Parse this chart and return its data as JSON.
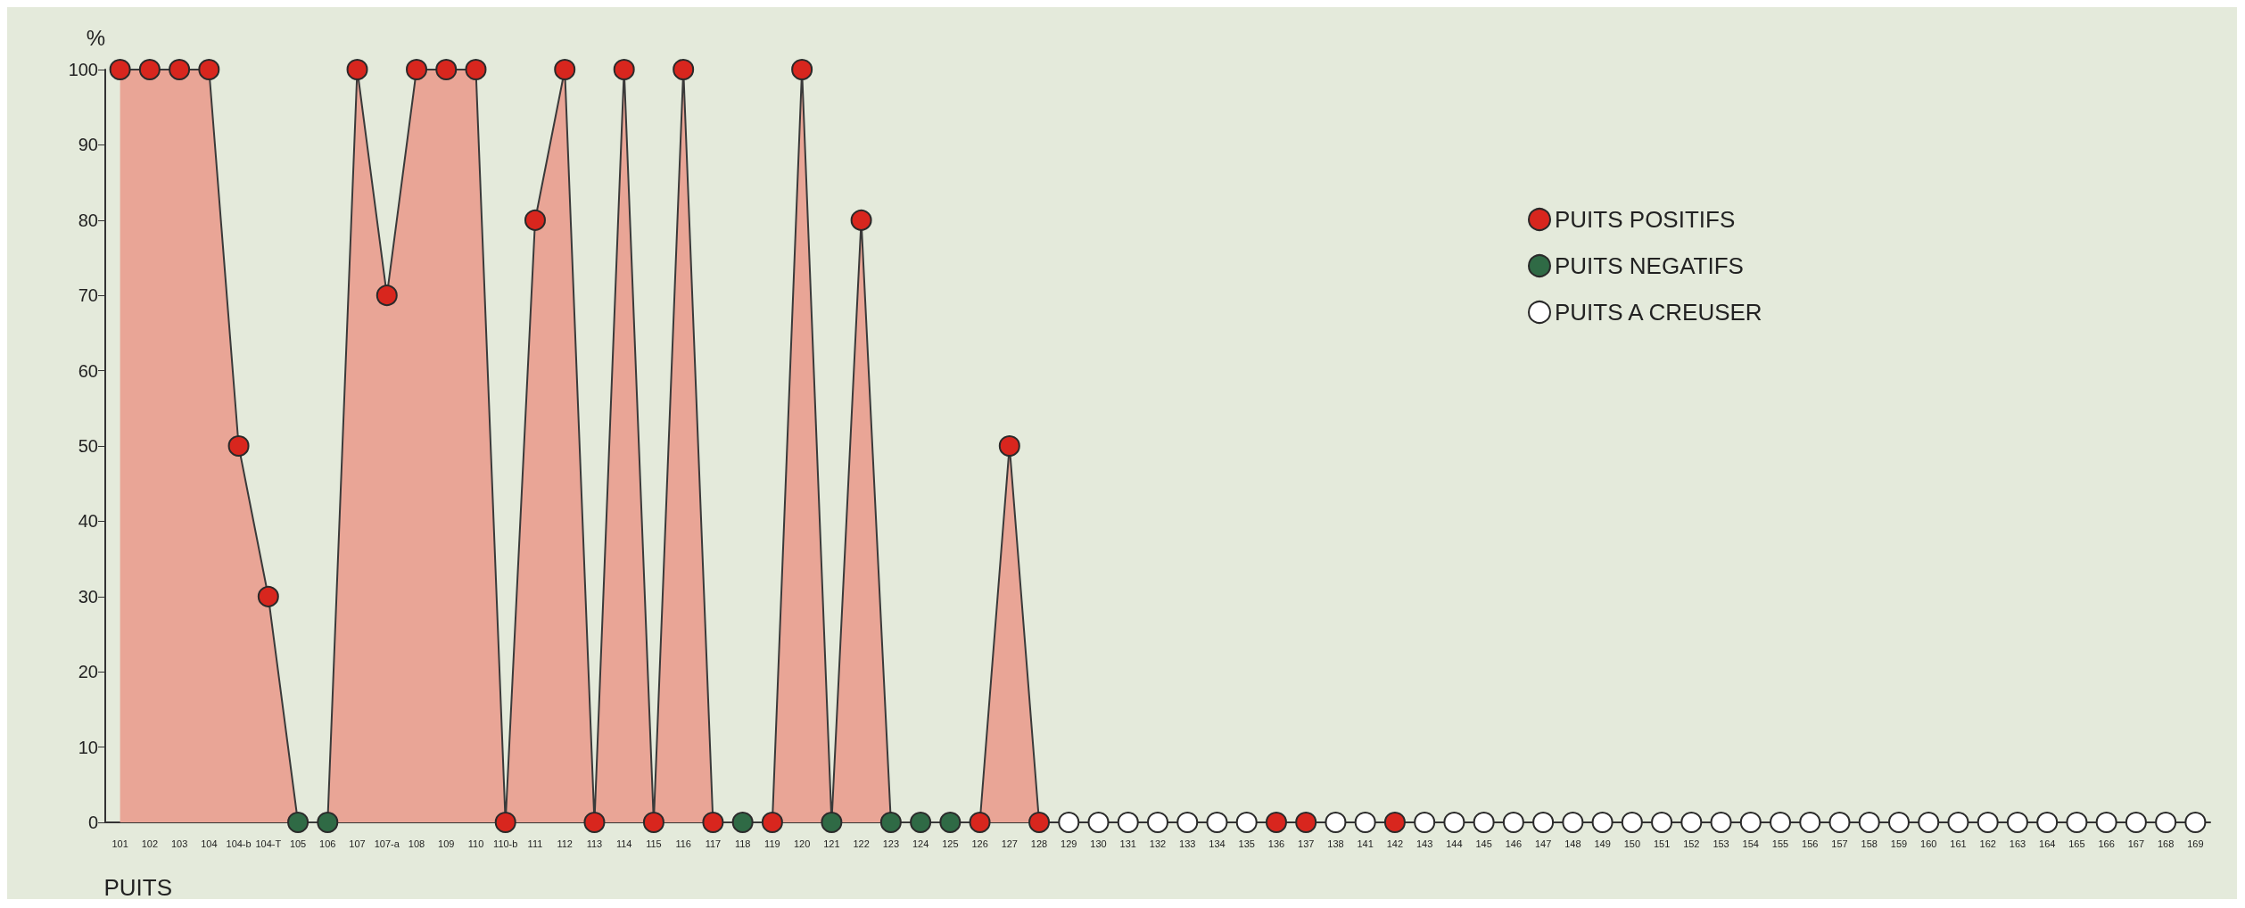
{
  "chart_data": {
    "type": "area",
    "xlabel": "PUITS",
    "ylabel": "%",
    "categories": [
      "101",
      "102",
      "103",
      "104",
      "104-b",
      "104-T",
      "105",
      "106",
      "107",
      "107-a",
      "108",
      "109",
      "110",
      "110-b",
      "111",
      "112",
      "113",
      "114",
      "115",
      "116",
      "117",
      "118",
      "119",
      "120",
      "121",
      "122",
      "123",
      "124",
      "125",
      "126",
      "127",
      "128",
      "129",
      "130",
      "131",
      "132",
      "133",
      "134",
      "135",
      "136",
      "137",
      "138",
      "141",
      "142",
      "143",
      "144",
      "145",
      "146",
      "147",
      "148",
      "149",
      "150",
      "151",
      "152",
      "153",
      "154",
      "155",
      "156",
      "157",
      "158",
      "159",
      "160",
      "161",
      "162",
      "163",
      "164",
      "165",
      "166",
      "167",
      "168",
      "169"
    ],
    "series": [
      {
        "color": "#e9a596",
        "values": [
          100,
          100,
          100,
          100,
          50,
          30,
          0,
          0,
          100,
          70,
          100,
          100,
          100,
          0,
          80,
          100,
          0,
          100,
          0,
          100,
          0,
          0,
          0,
          100,
          0,
          80,
          0,
          0,
          0,
          0,
          50,
          0,
          null,
          null,
          null,
          null,
          null,
          null,
          null,
          null,
          null,
          null,
          null,
          null,
          null,
          null,
          null,
          null,
          null,
          null,
          null,
          null,
          null,
          null,
          null,
          null,
          null,
          null,
          null,
          null,
          null,
          null,
          null,
          null,
          null,
          null,
          null,
          null,
          null,
          null,
          null
        ]
      },
      {
        "type": "scatter",
        "name": "PUITS POSITIFS",
        "marker": "circle",
        "color": "#d8261e",
        "values": [
          100,
          100,
          100,
          100,
          50,
          30,
          null,
          null,
          100,
          70,
          100,
          100,
          100,
          0,
          80,
          100,
          0,
          100,
          0,
          100,
          0,
          null,
          0,
          100,
          null,
          80,
          null,
          null,
          null,
          0,
          50,
          0,
          null,
          null,
          null,
          null,
          null,
          null,
          null,
          0,
          0,
          null,
          null,
          0,
          null,
          null,
          null,
          null,
          null,
          null,
          null,
          null,
          null,
          null,
          null,
          null,
          null,
          null,
          null,
          null,
          null,
          null,
          null,
          null,
          null,
          null,
          null,
          null,
          null,
          null,
          null
        ]
      },
      {
        "type": "scatter",
        "name": "PUITS NEGATIFS",
        "marker": "circle",
        "color": "#2f6a45",
        "values": [
          null,
          null,
          null,
          null,
          null,
          null,
          0,
          0,
          null,
          null,
          null,
          null,
          null,
          null,
          null,
          null,
          null,
          null,
          null,
          null,
          null,
          0,
          null,
          null,
          0,
          null,
          0,
          0,
          0,
          null,
          null,
          null,
          null,
          null,
          null,
          null,
          null,
          null,
          null,
          null,
          null,
          null,
          null,
          null,
          null,
          null,
          null,
          null,
          null,
          null,
          null,
          null,
          null,
          null,
          null,
          null,
          null,
          null,
          null,
          null,
          null,
          null,
          null,
          null,
          null,
          null,
          null,
          null,
          null,
          null,
          null
        ]
      },
      {
        "type": "scatter",
        "name": "PUITS A CREUSER",
        "marker": "circle",
        "color": "#ffffff",
        "values": [
          null,
          null,
          null,
          null,
          null,
          null,
          null,
          null,
          null,
          null,
          null,
          null,
          null,
          null,
          null,
          null,
          null,
          null,
          null,
          null,
          null,
          null,
          null,
          null,
          null,
          null,
          null,
          null,
          null,
          null,
          null,
          null,
          0,
          0,
          0,
          0,
          0,
          0,
          0,
          null,
          null,
          0,
          0,
          null,
          0,
          0,
          0,
          0,
          0,
          0,
          0,
          0,
          0,
          0,
          0,
          0,
          0,
          0,
          0,
          0,
          0,
          0,
          0,
          0,
          0,
          0,
          0,
          0,
          0,
          0,
          0
        ]
      }
    ],
    "ylim": [
      0,
      100
    ],
    "yticks": [
      0,
      10,
      20,
      30,
      40,
      50,
      60,
      70,
      80,
      90,
      100
    ],
    "grid": false,
    "legend": "right"
  }
}
